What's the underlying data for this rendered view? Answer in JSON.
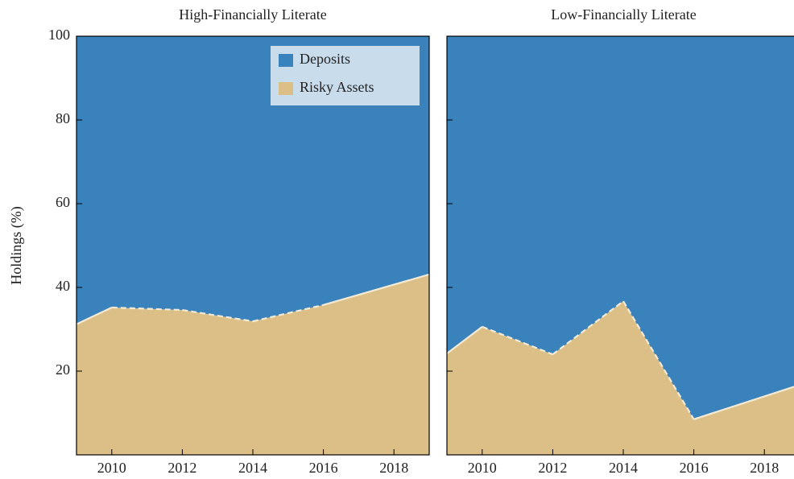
{
  "chart_data": [
    {
      "type": "area",
      "title": "High-Financially Literate",
      "ylabel": "Holdings (%)",
      "x": [
        2009,
        2010,
        2012,
        2014,
        2016,
        2019
      ],
      "series": [
        {
          "name": "Risky Assets",
          "color": "#dbbf86",
          "values": [
            31.2,
            35.2,
            34.6,
            31.9,
            35.8,
            43.1
          ]
        },
        {
          "name": "Deposits",
          "color": "#3a82bb",
          "values": [
            68.8,
            64.8,
            65.4,
            68.1,
            64.2,
            56.9
          ]
        }
      ],
      "dashed_x_range": [
        2010,
        2016
      ],
      "xlim": [
        2009,
        2019
      ],
      "xticks": [
        2010,
        2012,
        2014,
        2016,
        2018
      ],
      "ylim": [
        0,
        100
      ],
      "yticks": [
        20,
        40,
        60,
        80,
        100
      ],
      "legend": "upper right"
    },
    {
      "type": "area",
      "title": "Low-Financially Literate",
      "x": [
        2009,
        2010,
        2012,
        2014,
        2016,
        2019
      ],
      "series": [
        {
          "name": "Risky Assets",
          "color": "#dbbf86",
          "values": [
            24.2,
            30.6,
            24.0,
            36.7,
            8.5,
            16.7
          ]
        },
        {
          "name": "Deposits",
          "color": "#3a82bb",
          "values": [
            75.8,
            69.4,
            76.0,
            63.3,
            91.5,
            83.3
          ]
        }
      ],
      "dashed_x_range": [
        2010,
        2016
      ],
      "xlim": [
        2009,
        2019
      ],
      "xticks": [
        2010,
        2012,
        2014,
        2016,
        2018
      ],
      "ylim": [
        0,
        100
      ],
      "yticks": [
        20,
        40,
        60,
        80,
        100
      ]
    }
  ]
}
